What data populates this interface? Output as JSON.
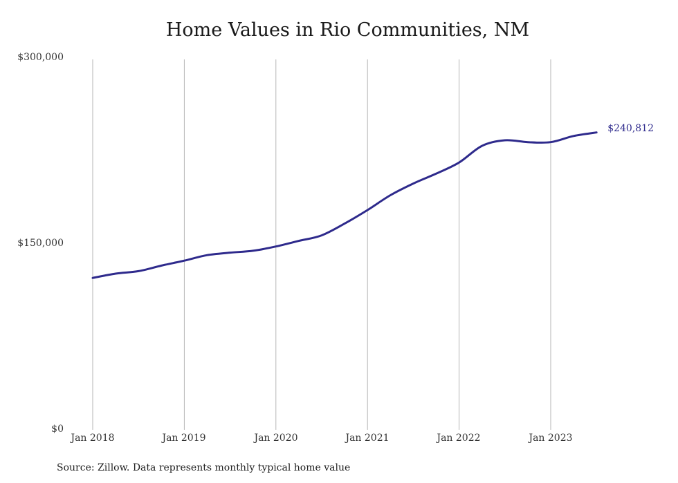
{
  "chart_data": {
    "type": "line",
    "title": "Home Values in Rio Communities, NM",
    "ylim": [
      0,
      300000
    ],
    "y_ticks": [
      0,
      150000,
      300000
    ],
    "y_tick_labels": [
      "$0",
      "$150,000",
      "$300,000"
    ],
    "x_tick_labels": [
      "Jan 2018",
      "Jan 2019",
      "Jan 2020",
      "Jan 2021",
      "Jan 2022",
      "Jan 2023"
    ],
    "x_tick_years": [
      2018,
      2019,
      2020,
      2021,
      2022,
      2023
    ],
    "grid": "vertical",
    "line_color": "#2e2a8c",
    "end_label": "$240,812",
    "series": [
      {
        "x": [
          "2018-01",
          "2018-04",
          "2018-07",
          "2018-10",
          "2019-01",
          "2019-04",
          "2019-07",
          "2019-10",
          "2020-01",
          "2020-04",
          "2020-07",
          "2020-10",
          "2021-01",
          "2021-04",
          "2021-07",
          "2021-10",
          "2022-01",
          "2022-04",
          "2022-07",
          "2022-10",
          "2023-01",
          "2023-04",
          "2023-07"
        ],
        "values": [
          123000,
          126500,
          128500,
          133000,
          137000,
          141500,
          143500,
          145000,
          148500,
          153000,
          157500,
          167000,
          178000,
          190000,
          199500,
          207500,
          216500,
          230000,
          234500,
          233000,
          233000,
          238000,
          240812
        ]
      }
    ]
  },
  "source": "Source: Zillow. Data represents monthly typical home value"
}
